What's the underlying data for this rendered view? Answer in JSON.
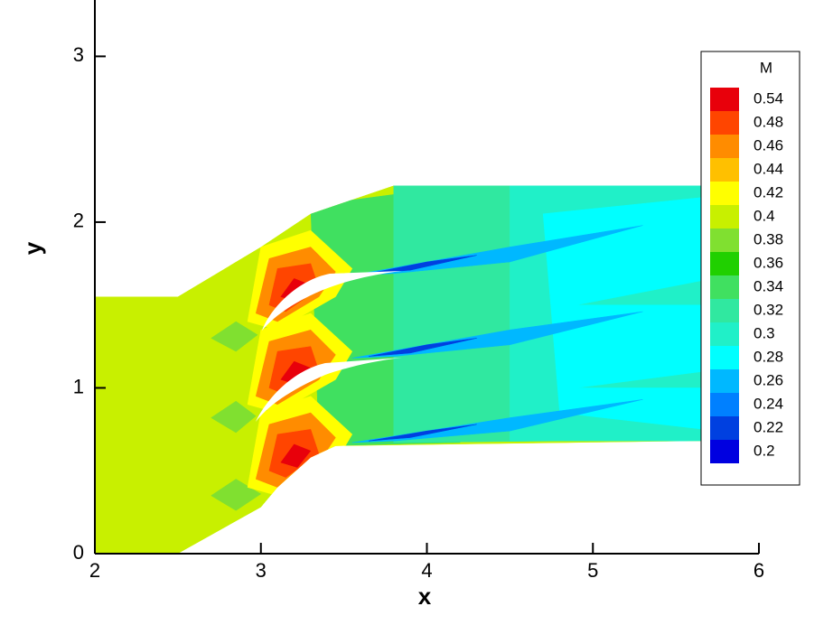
{
  "chart_data": {
    "type": "contour",
    "xlabel": "x",
    "ylabel": "y",
    "xlim": [
      2,
      6
    ],
    "ylim": [
      0,
      3.34
    ],
    "xticks": [
      2,
      3,
      4,
      5,
      6
    ],
    "yticks": [
      0,
      1,
      2,
      3
    ],
    "legend": {
      "title": "M",
      "position": "right",
      "levels": [
        0.54,
        0.48,
        0.46,
        0.44,
        0.42,
        0.4,
        0.38,
        0.36,
        0.34,
        0.32,
        0.3,
        0.28,
        0.26,
        0.24,
        0.22,
        0.2
      ],
      "colors": [
        "#e8000b",
        "#ff4500",
        "#ff8c00",
        "#ffc000",
        "#ffff00",
        "#c8f000",
        "#80e030",
        "#20d000",
        "#40e060",
        "#30e8a0",
        "#20f0c8",
        "#00ffff",
        "#00b8ff",
        "#0080ff",
        "#0040e0",
        "#0000e0"
      ]
    },
    "regions": [
      {
        "level": 0.4,
        "x": [
          2,
          2,
          2.5,
          3.0,
          3.3,
          3.8,
          5.67,
          5.67,
          3.45,
          3.3,
          3.1,
          3.0,
          2.5
        ],
        "y": [
          0,
          1.55,
          1.55,
          1.85,
          2.05,
          2.22,
          2.22,
          0.68,
          0.65,
          0.58,
          0.4,
          0.28,
          0
        ]
      },
      {
        "level": 0.34,
        "x": [
          3.3,
          4.2,
          4.2,
          3.35
        ],
        "y": [
          2.1,
          2.22,
          0.67,
          0.65
        ]
      },
      {
        "level": 0.32,
        "x": [
          3.8,
          4.8,
          4.8,
          3.8
        ],
        "y": [
          2.22,
          2.22,
          0.68,
          0.67
        ]
      },
      {
        "level": 0.3,
        "x": [
          4.5,
          5.67,
          5.67,
          4.5
        ],
        "y": [
          2.22,
          2.22,
          0.68,
          0.68
        ]
      },
      {
        "level": 0.28,
        "x": [
          4.7,
          5.67,
          5.67,
          4.9,
          5.67,
          5.67,
          4.9,
          5.67,
          5.67,
          4.8
        ],
        "y": [
          2.05,
          2.15,
          1.65,
          1.5,
          1.5,
          1.1,
          1.0,
          1.0,
          0.75,
          0.85
        ]
      },
      {
        "level": 0.38,
        "x": [
          2.7,
          2.85,
          2.98,
          2.85
        ],
        "y": [
          1.3,
          1.4,
          1.32,
          1.22
        ]
      },
      {
        "level": 0.38,
        "x": [
          2.7,
          2.85,
          2.97,
          2.85
        ],
        "y": [
          0.82,
          0.92,
          0.83,
          0.73
        ]
      },
      {
        "level": 0.38,
        "x": [
          2.7,
          2.85,
          3.0,
          2.85
        ],
        "y": [
          0.35,
          0.45,
          0.36,
          0.26
        ]
      },
      {
        "level": 0.42,
        "x": [
          2.92,
          3.0,
          3.3,
          3.55,
          3.45,
          3.1
        ],
        "y": [
          1.4,
          1.85,
          1.95,
          1.72,
          1.55,
          1.35
        ]
      },
      {
        "level": 0.42,
        "x": [
          2.92,
          3.0,
          3.3,
          3.55,
          3.45,
          3.1
        ],
        "y": [
          0.9,
          1.35,
          1.45,
          1.22,
          1.05,
          0.85
        ]
      },
      {
        "level": 0.42,
        "x": [
          2.92,
          3.0,
          3.3,
          3.55,
          3.45,
          3.1
        ],
        "y": [
          0.4,
          0.85,
          0.95,
          0.72,
          0.55,
          0.35
        ]
      },
      {
        "level": 0.46,
        "x": [
          2.97,
          3.05,
          3.3,
          3.45,
          3.35,
          3.1
        ],
        "y": [
          1.45,
          1.78,
          1.85,
          1.7,
          1.55,
          1.4
        ]
      },
      {
        "level": 0.46,
        "x": [
          2.97,
          3.05,
          3.3,
          3.45,
          3.35,
          3.1
        ],
        "y": [
          0.95,
          1.28,
          1.35,
          1.2,
          1.05,
          0.9
        ]
      },
      {
        "level": 0.46,
        "x": [
          2.97,
          3.05,
          3.3,
          3.45,
          3.35,
          3.1
        ],
        "y": [
          0.45,
          0.78,
          0.85,
          0.7,
          0.55,
          0.4
        ]
      },
      {
        "level": 0.48,
        "x": [
          3.05,
          3.1,
          3.3,
          3.35,
          3.15
        ],
        "y": [
          1.5,
          1.72,
          1.75,
          1.6,
          1.46
        ]
      },
      {
        "level": 0.48,
        "x": [
          3.05,
          3.1,
          3.3,
          3.35,
          3.15
        ],
        "y": [
          1.0,
          1.22,
          1.25,
          1.1,
          0.96
        ]
      },
      {
        "level": 0.48,
        "x": [
          3.05,
          3.1,
          3.3,
          3.35,
          3.15
        ],
        "y": [
          0.5,
          0.72,
          0.75,
          0.6,
          0.46
        ]
      },
      {
        "level": 0.54,
        "x": [
          3.12,
          3.2,
          3.3,
          3.22
        ],
        "y": [
          1.55,
          1.66,
          1.62,
          1.52
        ]
      },
      {
        "level": 0.54,
        "x": [
          3.12,
          3.2,
          3.3,
          3.22
        ],
        "y": [
          1.05,
          1.16,
          1.12,
          1.02
        ]
      },
      {
        "level": 0.54,
        "x": [
          3.12,
          3.2,
          3.3,
          3.22
        ],
        "y": [
          0.55,
          0.66,
          0.62,
          0.52
        ]
      },
      {
        "level": 0.26,
        "x": [
          3.55,
          4.5,
          5.3,
          4.5,
          3.8
        ],
        "y": [
          1.68,
          1.85,
          1.98,
          1.76,
          1.69
        ]
      },
      {
        "level": 0.26,
        "x": [
          3.55,
          4.5,
          5.3,
          4.5,
          3.8
        ],
        "y": [
          1.18,
          1.35,
          1.46,
          1.26,
          1.19
        ]
      },
      {
        "level": 0.26,
        "x": [
          3.55,
          4.5,
          5.3,
          4.5,
          3.8
        ],
        "y": [
          0.67,
          0.82,
          0.93,
          0.74,
          0.68
        ]
      },
      {
        "level": 0.22,
        "x": [
          3.65,
          4.0,
          4.3,
          3.9
        ],
        "y": [
          1.69,
          1.76,
          1.8,
          1.71
        ]
      },
      {
        "level": 0.22,
        "x": [
          3.65,
          4.0,
          4.3,
          3.9
        ],
        "y": [
          1.19,
          1.26,
          1.3,
          1.21
        ]
      },
      {
        "level": 0.22,
        "x": [
          3.65,
          4.0,
          4.3,
          3.9
        ],
        "y": [
          0.68,
          0.74,
          0.78,
          0.7
        ]
      }
    ]
  }
}
